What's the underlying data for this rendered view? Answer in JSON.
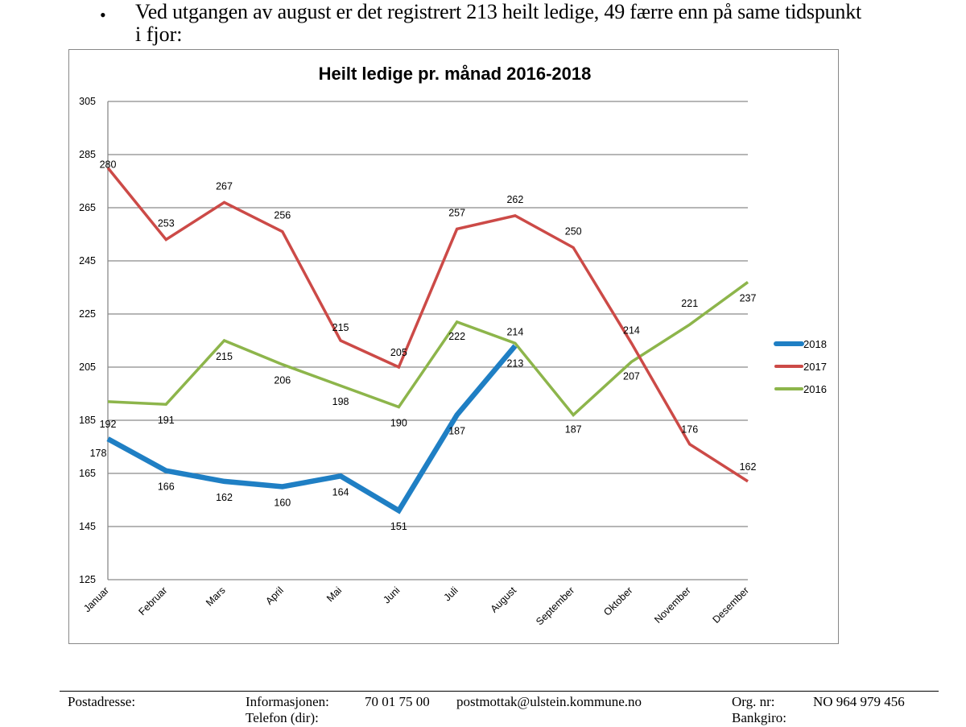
{
  "document": {
    "bullet_line1": "Ved utgangen av august er det registrert 213 heilt ledige, 49 færre enn på same tidspunkt",
    "bullet_line2": "i fjor:",
    "bullet_symbol": "•"
  },
  "chart_data": {
    "type": "line",
    "title": "Heilt ledige pr. månad 2016-2018",
    "xlabel": "",
    "ylabel": "",
    "categories": [
      "Januar",
      "Februar",
      "Mars",
      "April",
      "Mai",
      "Juni",
      "Juli",
      "August",
      "September",
      "Oktober",
      "November",
      "Desember"
    ],
    "ylim": [
      125,
      305
    ],
    "yticks": [
      125,
      145,
      165,
      185,
      205,
      225,
      245,
      265,
      285,
      305
    ],
    "grid": true,
    "legend_position": "right",
    "series": [
      {
        "name": "2018",
        "color": "#1f7fc4",
        "values": [
          178,
          166,
          162,
          160,
          164,
          151,
          187,
          213
        ]
      },
      {
        "name": "2017",
        "color": "#cc4a47",
        "values": [
          280,
          253,
          267,
          256,
          215,
          205,
          257,
          262,
          250,
          214,
          176,
          162
        ]
      },
      {
        "name": "2016",
        "color": "#8db54b",
        "values": [
          192,
          191,
          215,
          206,
          198,
          190,
          222,
          214,
          187,
          207,
          221,
          237
        ]
      }
    ]
  },
  "footer": {
    "postadresse_label": "Postadresse:",
    "informasjonen_label": "Informasjonen:",
    "informasjonen_value": "70 01 75 00",
    "telefon_label": "Telefon (dir):",
    "email": "postmottak@ulstein.kommune.no",
    "org_label": "Org. nr:",
    "org_value": "NO 964 979 456",
    "bankgiro_label": "Bankgiro:"
  }
}
